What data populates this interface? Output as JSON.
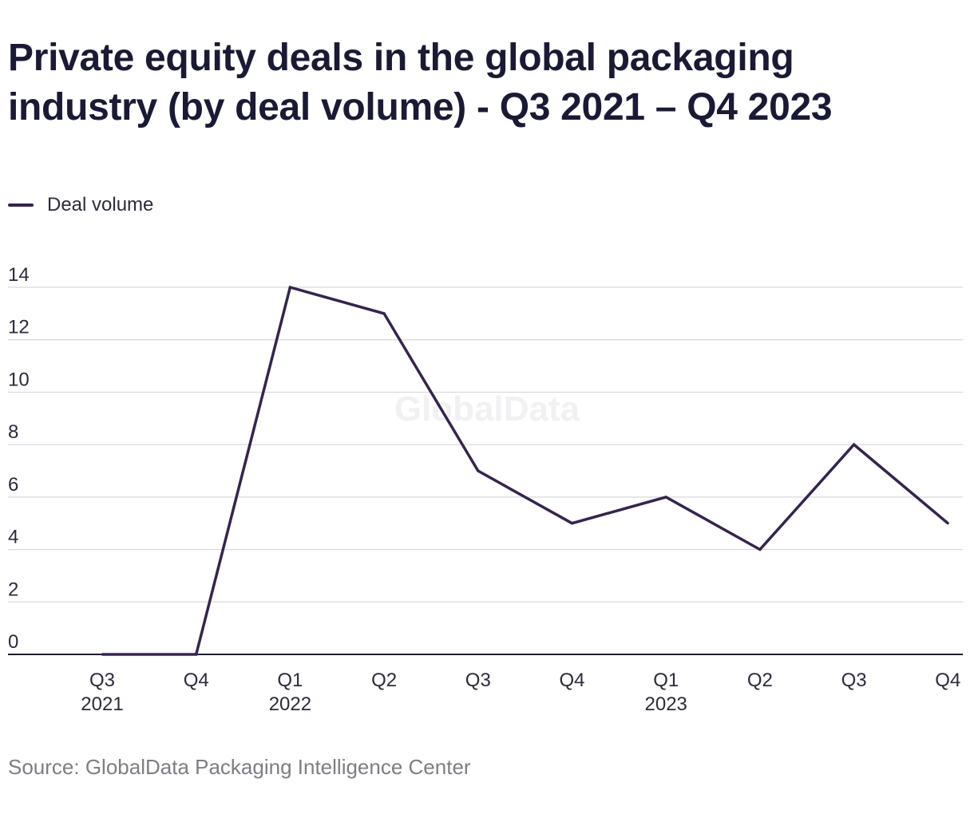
{
  "chart_data": {
    "type": "line",
    "title": "Private equity deals in the global packaging industry (by deal volume) - Q3 2021 – Q4 2023",
    "categories": [
      {
        "quarter": "Q3",
        "year": "2021"
      },
      {
        "quarter": "Q4",
        "year": ""
      },
      {
        "quarter": "Q1",
        "year": "2022"
      },
      {
        "quarter": "Q2",
        "year": ""
      },
      {
        "quarter": "Q3",
        "year": ""
      },
      {
        "quarter": "Q4",
        "year": ""
      },
      {
        "quarter": "Q1",
        "year": "2023"
      },
      {
        "quarter": "Q2",
        "year": ""
      },
      {
        "quarter": "Q3",
        "year": ""
      },
      {
        "quarter": "Q4",
        "year": ""
      }
    ],
    "series": [
      {
        "name": "Deal volume",
        "values": [
          0,
          0,
          14,
          13,
          7,
          5,
          6,
          4,
          8,
          5
        ],
        "color": "#35244f"
      }
    ],
    "yticks": [
      "0",
      "2",
      "4",
      "6",
      "8",
      "10",
      "12",
      "14"
    ],
    "ylim": [
      0,
      14
    ],
    "xlabel": "",
    "ylabel": "",
    "grid": true,
    "legend_position": "top-left",
    "watermark": "GlobalData",
    "source": "Source: GlobalData Packaging Intelligence Center"
  }
}
